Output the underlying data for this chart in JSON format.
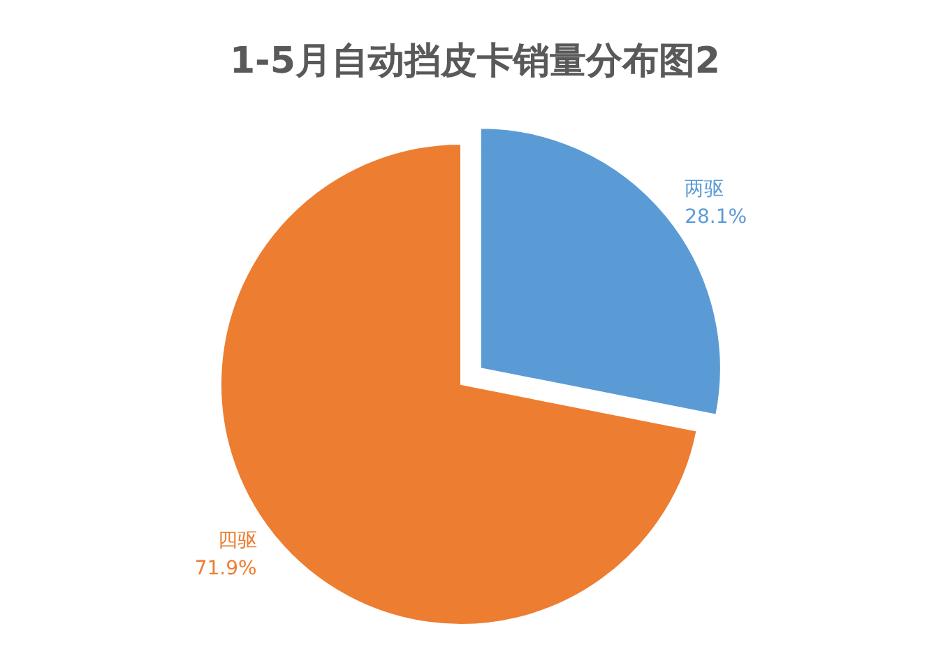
{
  "chart_data": {
    "type": "pie",
    "title": "1-5月自动挡皮卡销量分布图2",
    "categories": [
      "两驱",
      "四驱"
    ],
    "values": [
      28.1,
      71.9
    ],
    "colors": [
      "#5b9bd5",
      "#ed7d31"
    ],
    "value_labels": [
      "28.1%",
      "71.9%"
    ]
  }
}
